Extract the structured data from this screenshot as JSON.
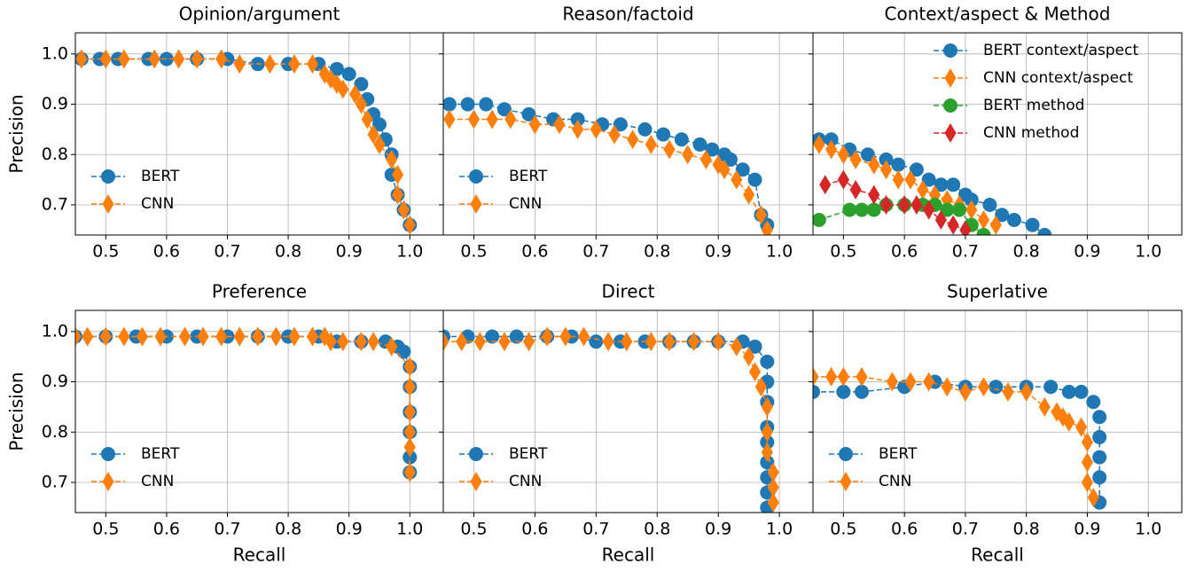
{
  "chart_data": [
    {
      "type": "line",
      "title": "Opinion/argument",
      "ylabel": "Precision",
      "legend": "lower left",
      "grid": true,
      "show_ytick_labels": true,
      "xlim": [
        0.45,
        1.055
      ],
      "ylim": [
        0.64,
        1.042
      ],
      "xticks": [
        0.5,
        0.6,
        0.7,
        0.8,
        0.9,
        {
          "value": 1,
          "label": "1.0"
        }
      ],
      "yticks": [
        0.7,
        0.8,
        0.9,
        {
          "value": 1,
          "label": "1.0"
        }
      ],
      "series": [
        {
          "name": "BERT",
          "color": "#1f77b4",
          "marker": "circle",
          "x": [
            0.46,
            0.49,
            0.52,
            0.57,
            0.6,
            0.65,
            0.7,
            0.75,
            0.8,
            0.85,
            0.88,
            0.9,
            0.92,
            0.93,
            0.94,
            0.95,
            0.96,
            0.97,
            0.97,
            0.98,
            0.99,
            1.0
          ],
          "values": [
            0.99,
            0.99,
            0.99,
            0.99,
            0.99,
            0.99,
            0.99,
            0.98,
            0.98,
            0.98,
            0.97,
            0.96,
            0.94,
            0.91,
            0.88,
            0.86,
            0.83,
            0.8,
            0.76,
            0.72,
            0.69,
            0.66
          ]
        },
        {
          "name": "CNN",
          "color": "#ff7f0e",
          "marker": "diamond",
          "x": [
            0.46,
            0.5,
            0.53,
            0.58,
            0.62,
            0.65,
            0.69,
            0.72,
            0.77,
            0.81,
            0.84,
            0.86,
            0.87,
            0.88,
            0.89,
            0.91,
            0.92,
            0.93,
            0.94,
            0.95,
            0.97,
            0.98,
            0.98,
            0.99,
            1.0
          ],
          "values": [
            0.99,
            0.99,
            0.99,
            0.99,
            0.99,
            0.99,
            0.99,
            0.98,
            0.98,
            0.98,
            0.98,
            0.96,
            0.95,
            0.94,
            0.93,
            0.92,
            0.9,
            0.87,
            0.84,
            0.82,
            0.79,
            0.76,
            0.72,
            0.69,
            0.66
          ]
        }
      ]
    },
    {
      "type": "line",
      "title": "Reason/factoid",
      "legend": "lower left",
      "grid": true,
      "show_ytick_labels": false,
      "xlim": [
        0.45,
        1.055
      ],
      "ylim": [
        0.64,
        1.042
      ],
      "xticks": [
        0.5,
        0.6,
        0.7,
        0.8,
        0.9,
        {
          "value": 1,
          "label": "1.0"
        }
      ],
      "yticks": [
        0.7,
        0.8,
        0.9,
        1
      ],
      "series": [
        {
          "name": "BERT",
          "color": "#1f77b4",
          "marker": "circle",
          "x": [
            0.46,
            0.49,
            0.52,
            0.55,
            0.59,
            0.63,
            0.67,
            0.71,
            0.74,
            0.78,
            0.81,
            0.84,
            0.87,
            0.89,
            0.91,
            0.92,
            0.94,
            0.96,
            0.97,
            0.98
          ],
          "values": [
            0.9,
            0.9,
            0.9,
            0.89,
            0.88,
            0.87,
            0.87,
            0.86,
            0.86,
            0.85,
            0.84,
            0.83,
            0.82,
            0.81,
            0.8,
            0.79,
            0.77,
            0.75,
            0.68,
            0.66
          ]
        },
        {
          "name": "CNN",
          "color": "#ff7f0e",
          "marker": "diamond",
          "x": [
            0.46,
            0.5,
            0.53,
            0.56,
            0.6,
            0.64,
            0.67,
            0.7,
            0.73,
            0.76,
            0.79,
            0.82,
            0.85,
            0.88,
            0.9,
            0.91,
            0.93,
            0.95,
            0.97,
            0.98
          ],
          "values": [
            0.87,
            0.87,
            0.87,
            0.87,
            0.86,
            0.86,
            0.85,
            0.85,
            0.84,
            0.83,
            0.82,
            0.81,
            0.8,
            0.79,
            0.78,
            0.77,
            0.75,
            0.72,
            0.68,
            0.65
          ]
        }
      ]
    },
    {
      "type": "line",
      "title": "Context/aspect & Method",
      "legend": "upper right",
      "grid": true,
      "show_ytick_labels": false,
      "xlim": [
        0.45,
        1.055
      ],
      "ylim": [
        0.64,
        1.042
      ],
      "xticks": [
        0.5,
        0.6,
        0.7,
        0.8,
        0.9,
        {
          "value": 1,
          "label": "1.0"
        }
      ],
      "yticks": [
        0.7,
        0.8,
        0.9,
        1
      ],
      "series": [
        {
          "name": "BERT context/aspect",
          "color": "#1f77b4",
          "marker": "circle",
          "x": [
            0.46,
            0.48,
            0.51,
            0.54,
            0.57,
            0.59,
            0.62,
            0.64,
            0.66,
            0.68,
            0.7,
            0.71,
            0.74,
            0.76,
            0.78,
            0.81,
            0.83
          ],
          "values": [
            0.83,
            0.83,
            0.81,
            0.8,
            0.79,
            0.78,
            0.77,
            0.75,
            0.74,
            0.74,
            0.72,
            0.71,
            0.7,
            0.68,
            0.67,
            0.66,
            0.64
          ]
        },
        {
          "name": "CNN context/aspect",
          "color": "#ff7f0e",
          "marker": "diamond",
          "x": [
            0.46,
            0.48,
            0.5,
            0.52,
            0.55,
            0.57,
            0.59,
            0.61,
            0.63,
            0.65,
            0.67,
            0.69,
            0.71,
            0.73,
            0.75
          ],
          "values": [
            0.82,
            0.81,
            0.8,
            0.79,
            0.78,
            0.77,
            0.75,
            0.75,
            0.73,
            0.72,
            0.71,
            0.7,
            0.69,
            0.67,
            0.66
          ]
        },
        {
          "name": "BERT method",
          "color": "#2ca02c",
          "marker": "circle",
          "x": [
            0.46,
            0.51,
            0.53,
            0.55,
            0.57,
            0.6,
            0.63,
            0.65,
            0.67,
            0.69,
            0.71,
            0.73
          ],
          "values": [
            0.67,
            0.69,
            0.69,
            0.69,
            0.7,
            0.7,
            0.7,
            0.7,
            0.69,
            0.69,
            0.66,
            0.64
          ]
        },
        {
          "name": "CNN method",
          "color": "#d62728",
          "marker": "diamond",
          "x": [
            0.47,
            0.5,
            0.52,
            0.55,
            0.57,
            0.6,
            0.62,
            0.64,
            0.66,
            0.68,
            0.7
          ],
          "values": [
            0.74,
            0.75,
            0.73,
            0.72,
            0.7,
            0.7,
            0.7,
            0.69,
            0.67,
            0.66,
            0.65
          ]
        }
      ]
    },
    {
      "type": "line",
      "title": "Preference",
      "ylabel": "Precision",
      "xlabel": "Recall",
      "legend": "lower left",
      "grid": true,
      "show_ytick_labels": true,
      "xlim": [
        0.45,
        1.055
      ],
      "ylim": [
        0.64,
        1.042
      ],
      "xticks": [
        0.5,
        0.6,
        0.7,
        0.8,
        0.9,
        {
          "value": 1,
          "label": "1.0"
        }
      ],
      "yticks": [
        0.7,
        0.8,
        0.9,
        {
          "value": 1,
          "label": "1.0"
        }
      ],
      "series": [
        {
          "name": "BERT",
          "color": "#1f77b4",
          "marker": "circle",
          "x": [
            0.45,
            0.5,
            0.55,
            0.6,
            0.65,
            0.7,
            0.75,
            0.8,
            0.85,
            0.88,
            0.92,
            0.96,
            0.98,
            0.99,
            1.0,
            1.0,
            1.0,
            1.0,
            1.0,
            1.0
          ],
          "values": [
            0.99,
            0.99,
            0.99,
            0.99,
            0.99,
            0.99,
            0.99,
            0.99,
            0.99,
            0.98,
            0.98,
            0.98,
            0.97,
            0.96,
            0.93,
            0.89,
            0.84,
            0.8,
            0.75,
            0.72
          ]
        },
        {
          "name": "CNN",
          "color": "#ff7f0e",
          "marker": "diamond",
          "x": [
            0.45,
            0.47,
            0.5,
            0.53,
            0.56,
            0.59,
            0.63,
            0.66,
            0.69,
            0.72,
            0.75,
            0.78,
            0.81,
            0.84,
            0.86,
            0.87,
            0.89,
            0.92,
            0.94,
            0.97,
            1.0,
            1.0,
            1.0,
            1.0,
            1.0,
            1.0
          ],
          "values": [
            0.99,
            0.99,
            0.99,
            0.99,
            0.99,
            0.99,
            0.99,
            0.99,
            0.99,
            0.99,
            0.99,
            0.99,
            0.99,
            0.99,
            0.99,
            0.98,
            0.98,
            0.98,
            0.98,
            0.97,
            0.93,
            0.89,
            0.84,
            0.8,
            0.77,
            0.72
          ]
        }
      ]
    },
    {
      "type": "line",
      "title": "Direct",
      "xlabel": "Recall",
      "legend": "lower left",
      "grid": true,
      "show_ytick_labels": false,
      "xlim": [
        0.45,
        1.055
      ],
      "ylim": [
        0.64,
        1.042
      ],
      "xticks": [
        0.5,
        0.6,
        0.7,
        0.8,
        0.9,
        {
          "value": 1,
          "label": "1.0"
        }
      ],
      "yticks": [
        0.7,
        0.8,
        0.9,
        1
      ],
      "series": [
        {
          "name": "BERT",
          "color": "#1f77b4",
          "marker": "circle",
          "x": [
            0.45,
            0.49,
            0.53,
            0.57,
            0.62,
            0.66,
            0.7,
            0.74,
            0.78,
            0.82,
            0.86,
            0.9,
            0.94,
            0.96,
            0.98,
            0.98,
            0.98,
            0.98,
            0.98,
            0.98,
            0.98,
            0.98,
            0.98
          ],
          "values": [
            0.99,
            0.99,
            0.99,
            0.99,
            0.99,
            0.99,
            0.98,
            0.98,
            0.98,
            0.98,
            0.98,
            0.98,
            0.98,
            0.97,
            0.94,
            0.9,
            0.86,
            0.81,
            0.78,
            0.74,
            0.71,
            0.68,
            0.65
          ]
        },
        {
          "name": "CNN",
          "color": "#ff7f0e",
          "marker": "diamond",
          "x": [
            0.45,
            0.48,
            0.51,
            0.55,
            0.59,
            0.62,
            0.65,
            0.68,
            0.72,
            0.75,
            0.79,
            0.82,
            0.86,
            0.9,
            0.93,
            0.95,
            0.96,
            0.97,
            0.98,
            0.98,
            0.98,
            0.99,
            0.99,
            0.99
          ],
          "values": [
            0.98,
            0.98,
            0.98,
            0.98,
            0.98,
            0.99,
            0.99,
            0.99,
            0.98,
            0.98,
            0.98,
            0.98,
            0.98,
            0.98,
            0.97,
            0.95,
            0.92,
            0.89,
            0.85,
            0.8,
            0.76,
            0.72,
            0.69,
            0.66
          ]
        }
      ]
    },
    {
      "type": "line",
      "title": "Superlative",
      "xlabel": "Recall",
      "legend": "lower left",
      "grid": true,
      "show_ytick_labels": false,
      "xlim": [
        0.45,
        1.055
      ],
      "ylim": [
        0.64,
        1.042
      ],
      "xticks": [
        0.5,
        0.6,
        0.7,
        0.8,
        0.9,
        {
          "value": 1,
          "label": "1.0"
        }
      ],
      "yticks": [
        0.7,
        0.8,
        0.9,
        1
      ],
      "series": [
        {
          "name": "BERT",
          "color": "#1f77b4",
          "marker": "circle",
          "x": [
            0.45,
            0.5,
            0.53,
            0.6,
            0.65,
            0.7,
            0.75,
            0.8,
            0.84,
            0.87,
            0.89,
            0.91,
            0.92,
            0.92,
            0.92,
            0.92,
            0.92
          ],
          "values": [
            0.88,
            0.88,
            0.88,
            0.89,
            0.9,
            0.89,
            0.89,
            0.89,
            0.89,
            0.88,
            0.88,
            0.86,
            0.83,
            0.79,
            0.75,
            0.71,
            0.66
          ]
        },
        {
          "name": "CNN",
          "color": "#ff7f0e",
          "marker": "diamond",
          "x": [
            0.45,
            0.48,
            0.5,
            0.53,
            0.58,
            0.61,
            0.64,
            0.67,
            0.7,
            0.73,
            0.77,
            0.8,
            0.83,
            0.85,
            0.86,
            0.87,
            0.89,
            0.9,
            0.9,
            0.9,
            0.91
          ],
          "values": [
            0.91,
            0.91,
            0.91,
            0.91,
            0.9,
            0.9,
            0.9,
            0.89,
            0.88,
            0.89,
            0.88,
            0.88,
            0.85,
            0.84,
            0.83,
            0.82,
            0.81,
            0.78,
            0.74,
            0.7,
            0.67
          ]
        }
      ]
    }
  ]
}
